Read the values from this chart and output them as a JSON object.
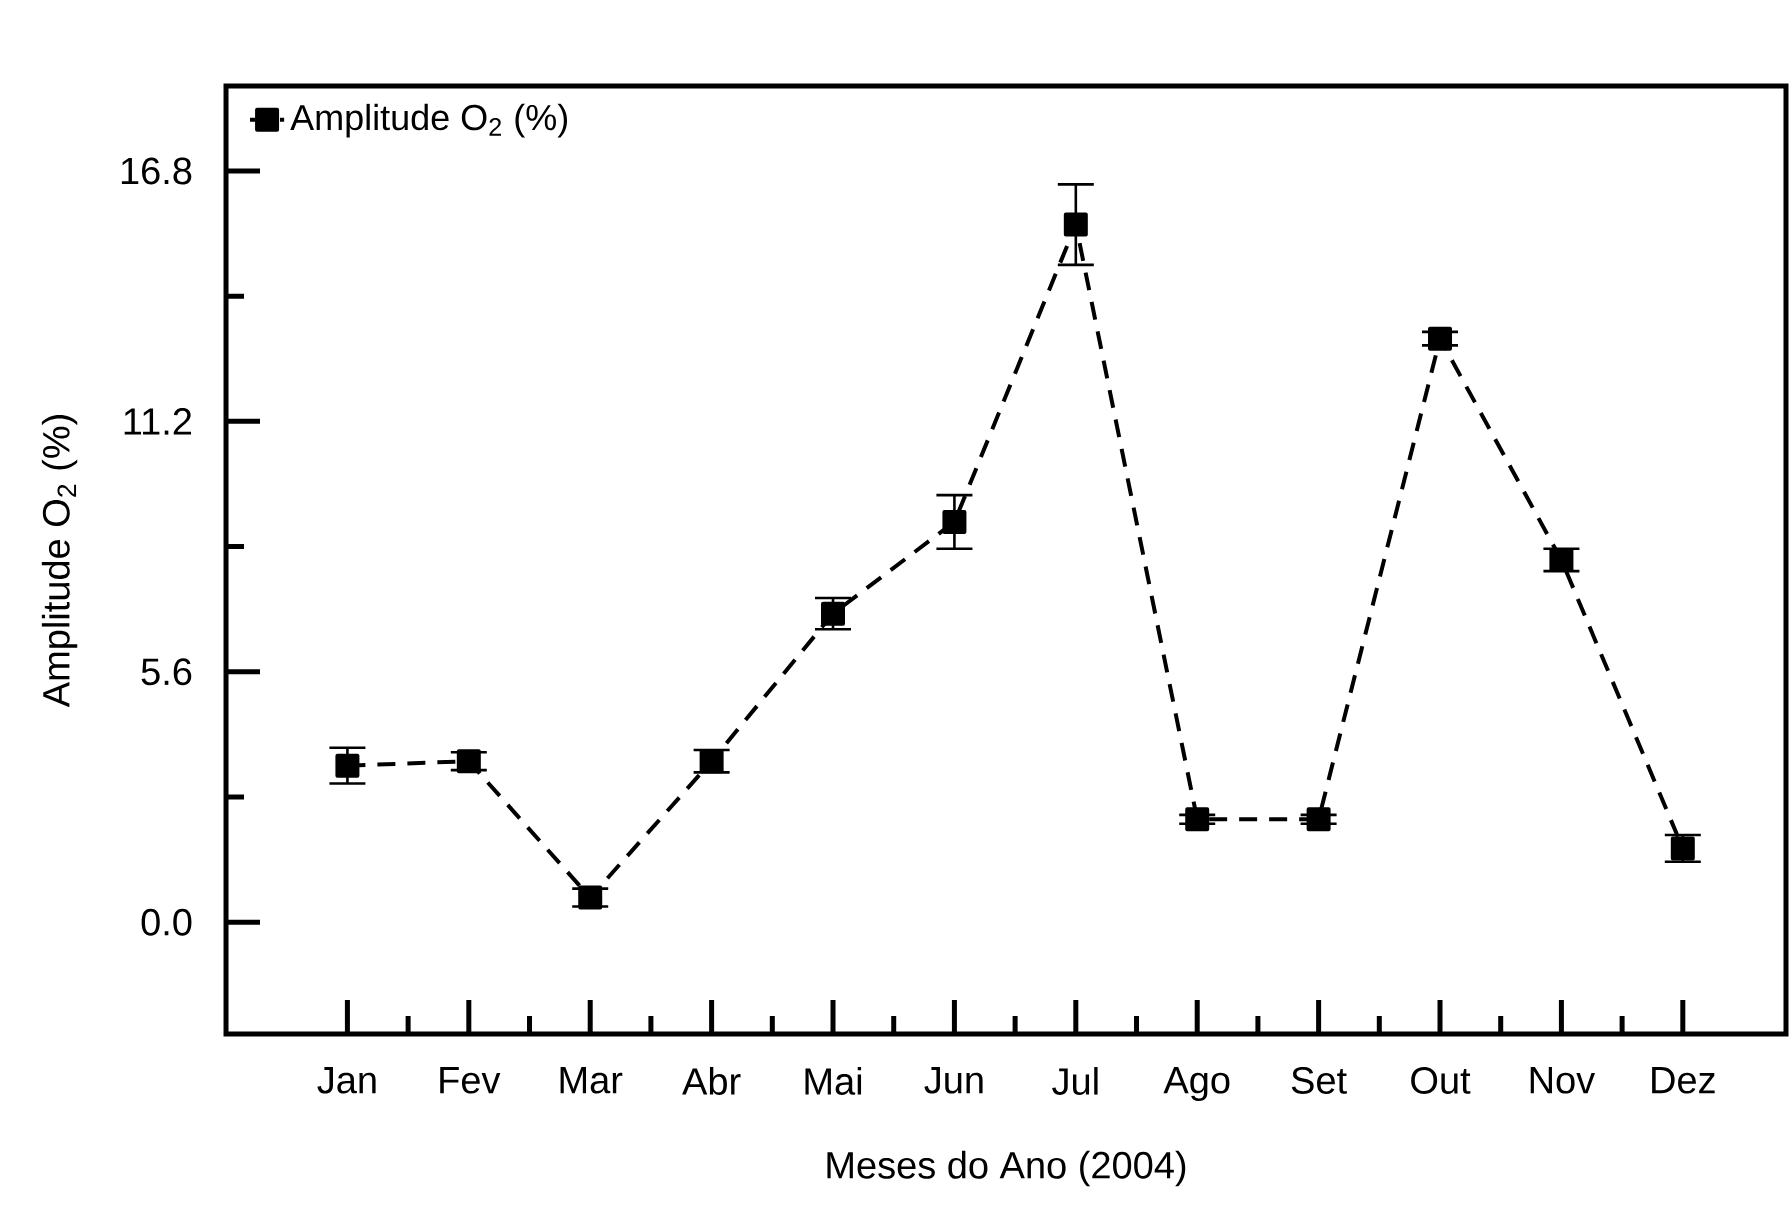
{
  "chart_data": {
    "type": "line",
    "xlabel": "Meses do Ano (2004)",
    "ylabel": "Amplitude O$_{2}$ (%)",
    "categories": [
      "Jan",
      "Fev",
      "Mar",
      "Abr",
      "Mai",
      "Jun",
      "Jul",
      "Ago",
      "Set",
      "Out",
      "Nov",
      "Dez"
    ],
    "series": [
      {
        "name": "Amplitude O$_{2}$ (%)",
        "color": "#000000",
        "values": [
          3.5,
          3.6,
          0.55,
          3.6,
          6.9,
          8.95,
          15.6,
          2.3,
          2.3,
          13.05,
          8.1,
          1.65
        ],
        "errors": [
          0.4,
          0.2,
          0.2,
          0.25,
          0.35,
          0.6,
          0.9,
          0.1,
          0.1,
          0.15,
          0.25,
          0.3
        ]
      }
    ],
    "ylim": [
      -2.5,
      18.7
    ],
    "yticks": [
      {
        "value": 0,
        "label": "0.0"
      },
      5.6,
      11.2,
      16.8
    ],
    "marker": "square",
    "line_style": "dashed",
    "legend": "top left",
    "grid": false
  }
}
